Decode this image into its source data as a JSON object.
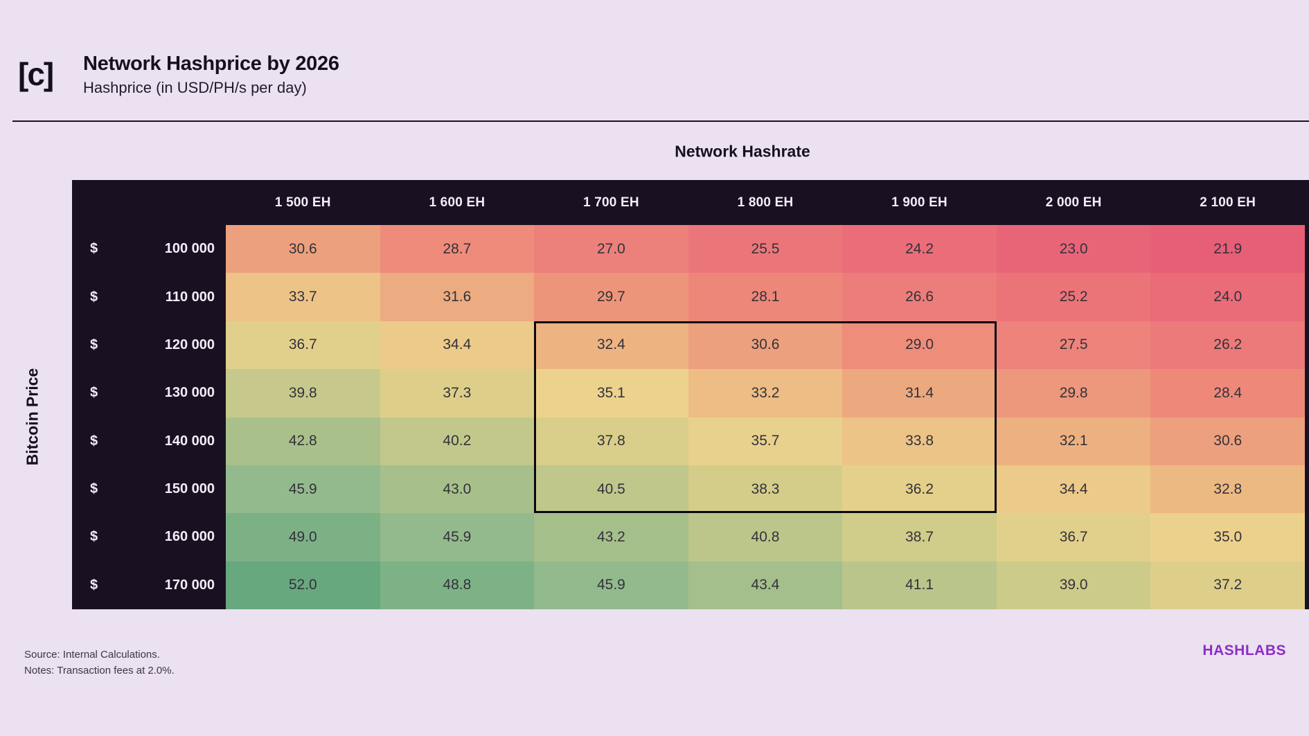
{
  "header": {
    "mark": "[c]",
    "title": "Network Hashprice by 2026",
    "subtitle": "Hashprice (in USD/PH/s per day)"
  },
  "axis": {
    "x_label": "Network Hashrate",
    "y_label": "Bitcoin Price"
  },
  "footer": {
    "source": "Source: Internal Calculations.",
    "notes": "Notes: Transaction fees at 2.0%.",
    "brand": "HASHLABS"
  },
  "colors": {
    "background": "#ebe1f0",
    "table_dark": "#191021",
    "header_text": "#f5eef8",
    "cell_text": "#33313a",
    "highlight_border": "#0b0812",
    "brand_purple": "#8d2ec6"
  },
  "chart_data": {
    "type": "heatmap",
    "title": "Network Hashprice by 2026",
    "subtitle": "Hashprice (in USD/PH/s per day)",
    "xlabel": "Network Hashrate",
    "ylabel": "Bitcoin Price",
    "columns": [
      "1 500 EH",
      "1 600 EH",
      "1 700 EH",
      "1 800 EH",
      "1 900 EH",
      "2 000 EH",
      "2 100 EH"
    ],
    "row_prefix": "$",
    "rows": [
      "100 000",
      "110 000",
      "120 000",
      "130 000",
      "140 000",
      "150 000",
      "160 000",
      "170 000"
    ],
    "values": [
      [
        30.6,
        28.7,
        27.0,
        25.5,
        24.2,
        23.0,
        21.9
      ],
      [
        33.7,
        31.6,
        29.7,
        28.1,
        26.6,
        25.2,
        24.0
      ],
      [
        36.7,
        34.4,
        32.4,
        30.6,
        29.0,
        27.5,
        26.2
      ],
      [
        39.8,
        37.3,
        35.1,
        33.2,
        31.4,
        29.8,
        28.4
      ],
      [
        42.8,
        40.2,
        37.8,
        35.7,
        33.8,
        32.1,
        30.6
      ],
      [
        45.9,
        43.0,
        40.5,
        38.3,
        36.2,
        34.4,
        32.8
      ],
      [
        49.0,
        45.9,
        43.2,
        40.8,
        38.7,
        36.7,
        35.0
      ],
      [
        52.0,
        48.8,
        45.9,
        43.4,
        41.1,
        39.0,
        37.2
      ]
    ],
    "value_format": "1-decimal",
    "value_range": [
      21.9,
      52.0
    ],
    "highlight": {
      "row_start": 2,
      "row_end": 5,
      "col_start": 2,
      "col_end": 4
    },
    "colormap_stops": [
      {
        "v": 21.9,
        "c": "#e75e77"
      },
      {
        "v": 24.2,
        "c": "#ea6d79"
      },
      {
        "v": 26.6,
        "c": "#ec7d7a"
      },
      {
        "v": 29.0,
        "c": "#ee8d7a"
      },
      {
        "v": 30.6,
        "c": "#eca07d"
      },
      {
        "v": 32.8,
        "c": "#edb983"
      },
      {
        "v": 35.1,
        "c": "#ecd28c"
      },
      {
        "v": 37.8,
        "c": "#d9ce8a"
      },
      {
        "v": 40.5,
        "c": "#bfc78b"
      },
      {
        "v": 43.2,
        "c": "#a5bf8b"
      },
      {
        "v": 45.9,
        "c": "#93ba8c"
      },
      {
        "v": 49.0,
        "c": "#7cb186"
      },
      {
        "v": 52.0,
        "c": "#68a87e"
      }
    ]
  }
}
